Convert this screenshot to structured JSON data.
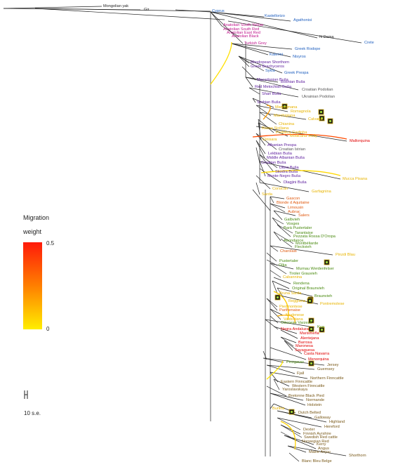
{
  "legend": {
    "title_line1": "Migration",
    "title_line2": "weight",
    "max_label": "0.5",
    "min_label": "0",
    "scale_label": "10 s.e."
  },
  "colors": {
    "outgroup": "#222222",
    "blue": "#1f5fbf",
    "magenta": "#c0168c",
    "purple": "#5a1a9c",
    "gray": "#555555",
    "yellow": "#e8b400",
    "red": "#e00000",
    "orange": "#e05a10",
    "green": "#4a8a10",
    "brown": "#7a5a1a"
  },
  "chart_data": {
    "type": "tree",
    "leaves": [
      {
        "name": "Mongolian yak",
        "color": "outgroup"
      },
      {
        "name": "Gir",
        "color": "outgroup"
      },
      {
        "name": "Cyprus",
        "color": "blue"
      },
      {
        "name": "Kastellorizo",
        "color": "blue"
      },
      {
        "name": "Agathonisi",
        "color": "blue"
      },
      {
        "name": "Anatolian South Yellow",
        "color": "magenta"
      },
      {
        "name": "Anatolian South Red",
        "color": "magenta"
      },
      {
        "name": "Anatolian East Red",
        "color": "magenta"
      },
      {
        "name": "Anatolian Black",
        "color": "magenta"
      },
      {
        "name": "N Dama",
        "color": "outgroup"
      },
      {
        "name": "Turkish Grey",
        "color": "magenta"
      },
      {
        "name": "Crete",
        "color": "blue"
      },
      {
        "name": "Greek Rodope",
        "color": "blue"
      },
      {
        "name": "Katerini",
        "color": "blue"
      },
      {
        "name": "Nisyros",
        "color": "blue"
      },
      {
        "name": "Rhodopean Shorthorn",
        "color": "purple"
      },
      {
        "name": "Greek Brachyceros",
        "color": "purple"
      },
      {
        "name": "Sykia",
        "color": "blue"
      },
      {
        "name": "Greek Prespa",
        "color": "blue"
      },
      {
        "name": "Macedonian Buša",
        "color": "purple"
      },
      {
        "name": "Bosnian Buša",
        "color": "purple"
      },
      {
        "name": "Red Metochian Buša",
        "color": "purple"
      },
      {
        "name": "Croatian Podolian",
        "color": "gray"
      },
      {
        "name": "Shari Buša",
        "color": "purple"
      },
      {
        "name": "Ukrainian Podolian",
        "color": "gray"
      },
      {
        "name": "Serbian Buša",
        "color": "purple"
      },
      {
        "name": "Maremmana",
        "color": "yellow"
      },
      {
        "name": "Romagnola",
        "color": "yellow"
      },
      {
        "name": "Marchigiana",
        "color": "yellow"
      },
      {
        "name": "Calvana",
        "color": "yellow"
      },
      {
        "name": "Chianina",
        "color": "yellow"
      },
      {
        "name": "Rossa Siciliana",
        "color": "yellow"
      },
      {
        "name": "Podolica Garfinha",
        "color": "yellow"
      },
      {
        "name": "Modicana Sicily",
        "color": "yellow"
      },
      {
        "name": "Cinisara",
        "color": "yellow"
      },
      {
        "name": "Mallorquina",
        "color": "red"
      },
      {
        "name": "Albanian Prespa",
        "color": "purple"
      },
      {
        "name": "Croatian Istrian",
        "color": "gray"
      },
      {
        "name": "Lekbian Buša",
        "color": "purple"
      },
      {
        "name": "Middle Albanian Buša",
        "color": "purple"
      },
      {
        "name": "Croatian Buša",
        "color": "purple"
      },
      {
        "name": "Dibra Buša",
        "color": "purple"
      },
      {
        "name": "Skodra Buša",
        "color": "purple"
      },
      {
        "name": "Monte-Negro Buša",
        "color": "purple"
      },
      {
        "name": "Mucca Pisana",
        "color": "yellow"
      },
      {
        "name": "Dlagjini Buša",
        "color": "purple"
      },
      {
        "name": "Corsican",
        "color": "yellow"
      },
      {
        "name": "Garfagnina",
        "color": "yellow"
      },
      {
        "name": "Sarda",
        "color": "yellow"
      },
      {
        "name": "Gascon",
        "color": "orange"
      },
      {
        "name": "Blonde d Aquitaine",
        "color": "orange"
      },
      {
        "name": "Limousin",
        "color": "orange"
      },
      {
        "name": "Aubrac",
        "color": "orange"
      },
      {
        "name": "Salers",
        "color": "orange"
      },
      {
        "name": "Galbvieh",
        "color": "green"
      },
      {
        "name": "Vosges",
        "color": "green"
      },
      {
        "name": "Barà Pustertaler",
        "color": "green"
      },
      {
        "name": "Tarantaise",
        "color": "green"
      },
      {
        "name": "Pezzata Rossa D'Oropa",
        "color": "green"
      },
      {
        "name": "Abondance",
        "color": "green"
      },
      {
        "name": "Montbéliarde",
        "color": "green"
      },
      {
        "name": "Fleckvieh",
        "color": "green"
      },
      {
        "name": "Charolais",
        "color": "orange"
      },
      {
        "name": "Pinzdi Blau",
        "color": "yellow"
      },
      {
        "name": "Pustertaler",
        "color": "green"
      },
      {
        "name": "Olka",
        "color": "green"
      },
      {
        "name": "Murnau Werdenfelser",
        "color": "green"
      },
      {
        "name": "Tiroler Grauvieh",
        "color": "green"
      },
      {
        "name": "Cabannina",
        "color": "yellow"
      },
      {
        "name": "Rendena",
        "color": "green"
      },
      {
        "name": "Original Braunvieh",
        "color": "green"
      },
      {
        "name": "Bruna Sarda",
        "color": "yellow"
      },
      {
        "name": "Braunvieh",
        "color": "green"
      },
      {
        "name": "Reggiana",
        "color": "yellow"
      },
      {
        "name": "Pontremolese",
        "color": "yellow"
      },
      {
        "name": "Piedmontese",
        "color": "yellow"
      },
      {
        "name": "Parthenaise",
        "color": "orange"
      },
      {
        "name": "Modenese",
        "color": "yellow"
      },
      {
        "name": "Valdostana",
        "color": "yellow"
      },
      {
        "name": "Ottonese Varzese",
        "color": "green"
      },
      {
        "name": "Negra Andaluza",
        "color": "red"
      },
      {
        "name": "Kua",
        "color": "green"
      },
      {
        "name": "Marismeña",
        "color": "red"
      },
      {
        "name": "Alentejana",
        "color": "red"
      },
      {
        "name": "Barrosa",
        "color": "red"
      },
      {
        "name": "Maronesa",
        "color": "red"
      },
      {
        "name": "Sayaguesa",
        "color": "red"
      },
      {
        "name": "Casta Navarra",
        "color": "red"
      },
      {
        "name": "Menorquina",
        "color": "red"
      },
      {
        "name": "Pinzgauer",
        "color": "green"
      },
      {
        "name": "Jersey",
        "color": "brown"
      },
      {
        "name": "Guernsey",
        "color": "brown"
      },
      {
        "name": "Fjall",
        "color": "brown"
      },
      {
        "name": "Northern Finncattle",
        "color": "brown"
      },
      {
        "name": "Eastern Finncattle",
        "color": "brown"
      },
      {
        "name": "Western Finncattle",
        "color": "brown"
      },
      {
        "name": "Yaroslavskaya",
        "color": "brown"
      },
      {
        "name": "Bretonne Black Pied",
        "color": "brown"
      },
      {
        "name": "Normande",
        "color": "brown"
      },
      {
        "name": "Holstein",
        "color": "brown"
      },
      {
        "name": "Burlina",
        "color": "yellow"
      },
      {
        "name": "Dutch Belted",
        "color": "brown"
      },
      {
        "name": "Galloway",
        "color": "brown"
      },
      {
        "name": "Highland",
        "color": "brown"
      },
      {
        "name": "Hereford",
        "color": "brown"
      },
      {
        "name": "Dexter",
        "color": "brown"
      },
      {
        "name": "Finnish Ayrshire",
        "color": "brown"
      },
      {
        "name": "Swedish Red cattle",
        "color": "brown"
      },
      {
        "name": "Norwegian Red",
        "color": "brown"
      },
      {
        "name": "Kerry",
        "color": "brown"
      },
      {
        "name": "Angus",
        "color": "brown"
      },
      {
        "name": "Maine Anjou",
        "color": "brown"
      },
      {
        "name": "Shorthorn",
        "color": "brown"
      },
      {
        "name": "Blanc Bleu Belge",
        "color": "brown"
      }
    ]
  }
}
